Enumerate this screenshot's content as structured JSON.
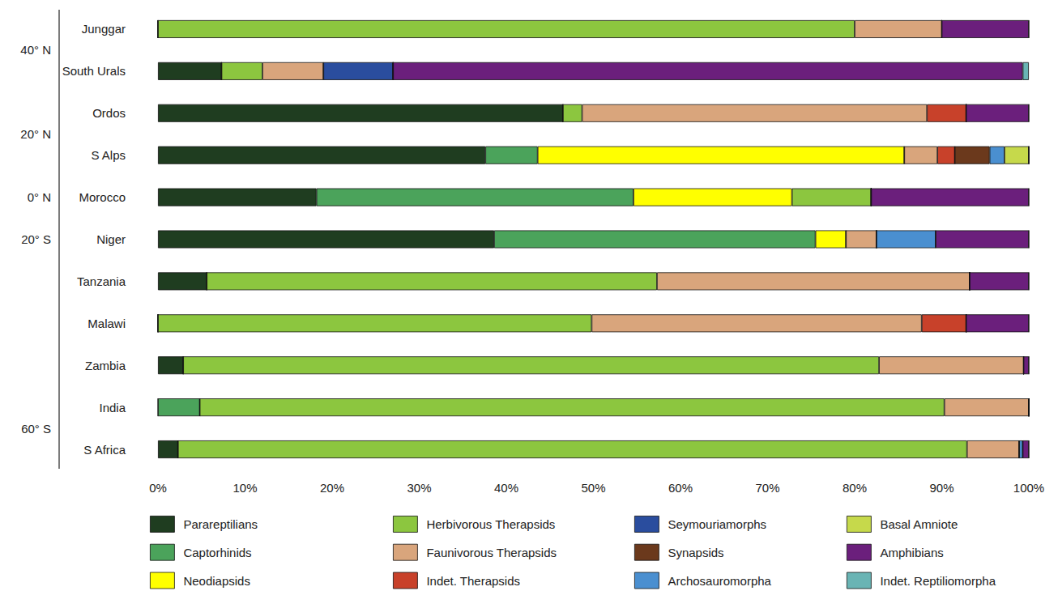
{
  "chart_data": {
    "type": "bar",
    "orientation": "horizontal",
    "stacked": true,
    "legend": "bottom",
    "grid": false,
    "categories": [
      "Junggar",
      "South Urals",
      "Ordos",
      "S Alps",
      "Morocco",
      "Niger",
      "Tanzania",
      "Malawi",
      "Zambia",
      "India",
      "S Africa"
    ],
    "xlim": [
      0,
      100
    ],
    "xticks": [
      {
        "value": 0,
        "label": "0%"
      },
      {
        "value": 10,
        "label": "10%"
      },
      {
        "value": 20,
        "label": "20%"
      },
      {
        "value": 30,
        "label": "30%"
      },
      {
        "value": 40,
        "label": "40%"
      },
      {
        "value": 50,
        "label": "50%"
      },
      {
        "value": 60,
        "label": "60%"
      },
      {
        "value": 70,
        "label": "70%"
      },
      {
        "value": 80,
        "label": "80%"
      },
      {
        "value": 90,
        "label": "90%"
      },
      {
        "value": 100,
        "label": "100%"
      }
    ],
    "latitude_labels": [
      {
        "label": "40° N",
        "between": [
          "Junggar",
          "South Urals"
        ]
      },
      {
        "label": "20° N",
        "between": [
          "Ordos",
          "S Alps"
        ]
      },
      {
        "label": "0° N",
        "between": [
          "Morocco"
        ]
      },
      {
        "label": "20° S",
        "between": [
          "Niger"
        ]
      },
      {
        "label": "60° S",
        "between": [
          "India",
          "S Africa"
        ]
      }
    ],
    "series": [
      {
        "name": "Parareptilians",
        "color": "#1f3d20",
        "values": [
          0,
          7.3,
          46.5,
          37.6,
          18.2,
          38.6,
          5.6,
          0,
          2.9,
          0,
          2.3
        ]
      },
      {
        "name": "Captorhinids",
        "color": "#4ba35b",
        "values": [
          0,
          0,
          0,
          6,
          36.4,
          36.9,
          0,
          0,
          0,
          4.8,
          0
        ]
      },
      {
        "name": "Neodiapsids",
        "color": "#ffff00",
        "values": [
          0,
          0,
          0,
          42.1,
          18.2,
          3.5,
          0,
          0,
          0,
          0,
          0
        ]
      },
      {
        "name": "Herbivorous Therapsids",
        "color": "#8cc63f",
        "values": [
          80,
          4.7,
          2.2,
          0,
          9.1,
          0,
          51.7,
          49.8,
          79.9,
          85.5,
          90.6
        ]
      },
      {
        "name": "Faunivorous Therapsids",
        "color": "#d9a57c",
        "values": [
          10,
          7,
          39.6,
          3.8,
          0,
          3.5,
          35.9,
          37.9,
          16.6,
          9.7,
          6
        ]
      },
      {
        "name": "Indet. Therapsids",
        "color": "#c8412a",
        "values": [
          0,
          0,
          4.5,
          2,
          0,
          0,
          0,
          5.1,
          0,
          0,
          0
        ]
      },
      {
        "name": "Seymouriamorphs",
        "color": "#2a4d9e",
        "values": [
          0,
          8,
          0,
          0,
          0,
          0,
          0,
          0,
          0,
          0,
          0
        ]
      },
      {
        "name": "Synapsids",
        "color": "#6b391c",
        "values": [
          0,
          0,
          0,
          4,
          0,
          0,
          0,
          0,
          0,
          0,
          0
        ]
      },
      {
        "name": "Archosauromorpha",
        "color": "#4a8fd0",
        "values": [
          0,
          0,
          0,
          1.7,
          0,
          6.8,
          0,
          0,
          0,
          0,
          0.4
        ]
      },
      {
        "name": "Basal Amniote",
        "color": "#c6d94b",
        "values": [
          0,
          0,
          0,
          2.8,
          0,
          0,
          0,
          0,
          0,
          0,
          0
        ]
      },
      {
        "name": "Amphibians",
        "color": "#6b1f7c",
        "values": [
          10,
          72.3,
          7.2,
          0,
          18.1,
          10.7,
          6.8,
          7.2,
          0.6,
          0,
          0.7
        ]
      },
      {
        "name": "Indet. Reptiliomorpha",
        "color": "#69b4b4",
        "values": [
          0,
          0.7,
          0,
          0,
          0,
          0,
          0,
          0,
          0,
          0,
          0
        ]
      }
    ]
  }
}
